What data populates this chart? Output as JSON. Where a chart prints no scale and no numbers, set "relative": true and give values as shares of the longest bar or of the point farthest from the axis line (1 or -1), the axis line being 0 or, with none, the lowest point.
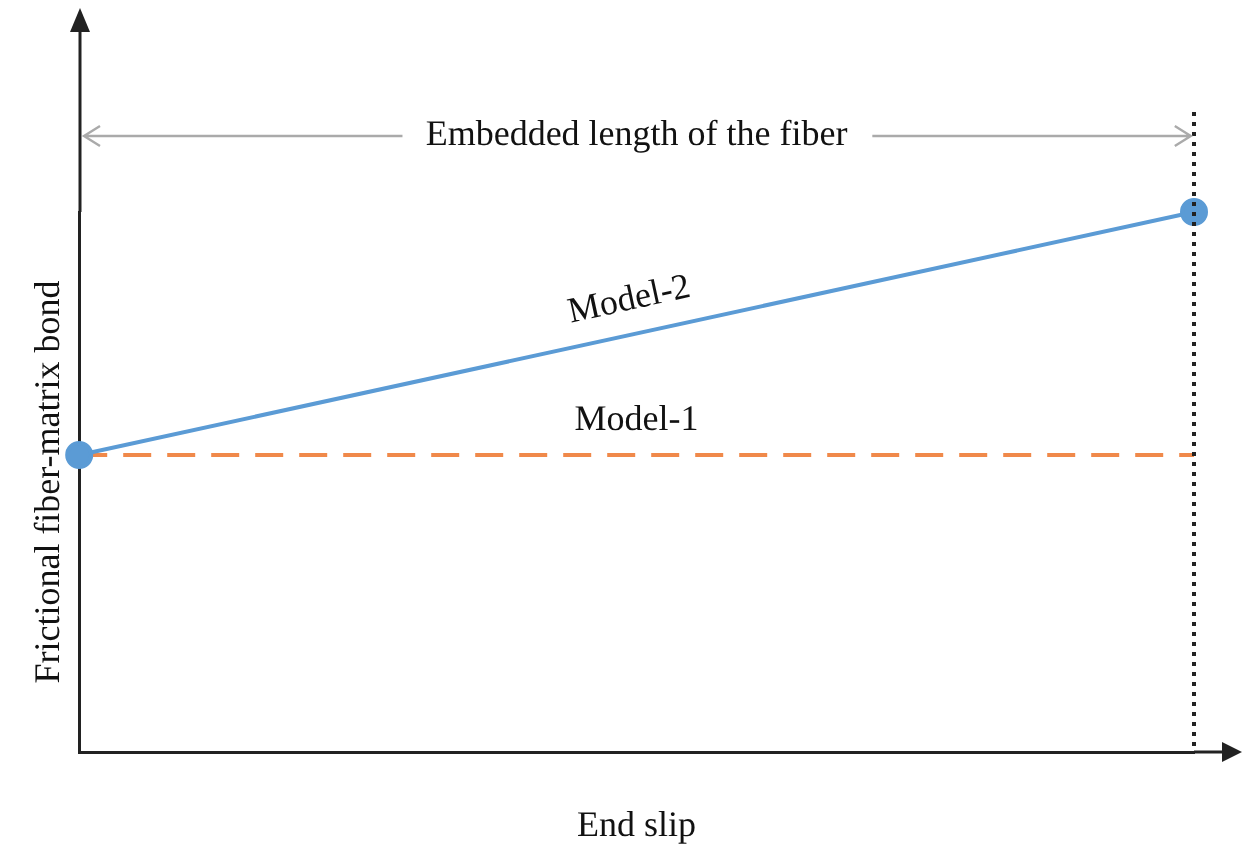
{
  "chart_data": {
    "type": "line",
    "relative": true,
    "xlabel": "End slip",
    "ylabel": "Frictional fiber-matrix bond",
    "categories": [
      null,
      null
    ],
    "series": [
      {
        "name": "Model-2",
        "color": "#5b9bd5",
        "values": [
          0.55,
          1
        ],
        "marker": "circle",
        "line_style": "solid"
      },
      {
        "name": "Model-1",
        "color": "#f0894a",
        "values": [
          0.55,
          0.55
        ],
        "marker": "none",
        "line_style": "dashed"
      }
    ],
    "annotations": [
      "Embedded length of the fiber"
    ],
    "legend": false,
    "grid": false
  }
}
